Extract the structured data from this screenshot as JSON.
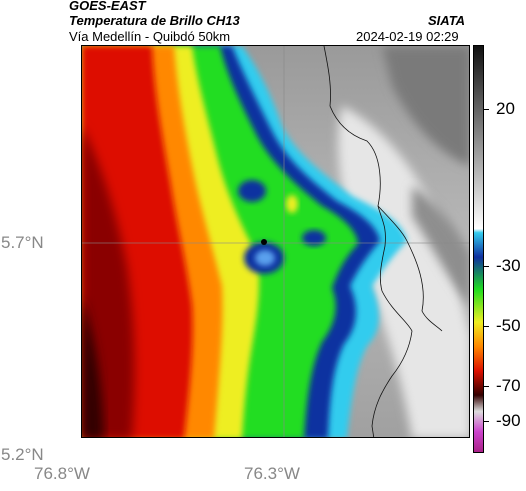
{
  "header": {
    "satellite": "GOES-EAST",
    "product": "Temperatura de Brillo CH13",
    "region": "Vía Medellín - Quibdó 50km",
    "source": "SIATA",
    "datetime": "2024-02-19 02:29"
  },
  "map": {
    "lat_labels": [
      "5.7°N",
      "5.2°N"
    ],
    "lon_labels": [
      "76.8°W",
      "76.3°W"
    ],
    "grid": true
  },
  "colorbar": {
    "labels": [
      "20",
      "-30",
      "-50",
      "-70",
      "-90"
    ],
    "colors": {
      "warm_top": "#111111",
      "gray_mid": "#9a9a9a",
      "white": "#ffffff",
      "cyan": "#33ccee",
      "blue": "#1030a0",
      "green": "#20dd20",
      "yellow": "#eeee22",
      "orange": "#ff8800",
      "red": "#dd1100",
      "darkred": "#330000",
      "magenta": "#cc44cc"
    }
  }
}
